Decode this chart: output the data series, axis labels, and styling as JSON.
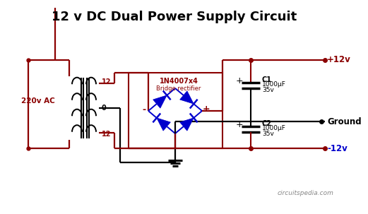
{
  "title": "12 v DC Dual Power Supply Circuit",
  "title_fontsize": 13,
  "title_fontweight": "bold",
  "bg_color": "#ffffff",
  "wire_color_red": "#8B0000",
  "wire_color_black": "#000000",
  "blue_color": "#0000cc",
  "dark_red": "#8B0000",
  "label_220": "220v AC",
  "label_ground": "Ground",
  "label_plus12": "+12v",
  "label_minus12": "-12v",
  "label_12_top": "12",
  "label_0": "0",
  "label_12_bot": "12",
  "label_bridge_line1": "1N4007x4",
  "label_bridge_line2": "Bridge rectifier",
  "label_C1_line1": "C1",
  "label_C1_line2": "1000μF",
  "label_C1_line3": "35v",
  "label_C2_line1": "C2",
  "label_C2_line2": "1000μF",
  "label_C2_line3": "35v",
  "watermark": "circuitspedia.com"
}
